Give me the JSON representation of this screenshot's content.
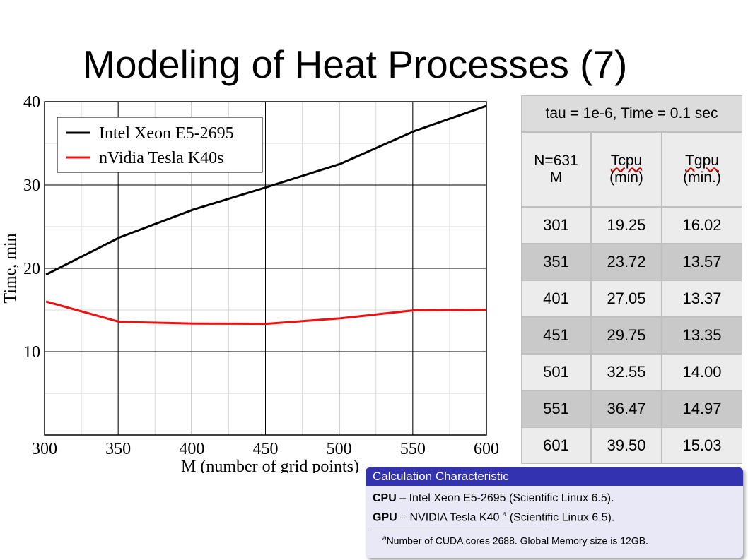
{
  "slide": {
    "title": "Modeling of Heat Processes (7)"
  },
  "chart_data": {
    "type": "line",
    "x": [
      301,
      351,
      401,
      451,
      501,
      551,
      601
    ],
    "series": [
      {
        "name": "Intel Xeon E5-2695",
        "color": "#000000",
        "values": [
          19.25,
          23.72,
          27.05,
          29.75,
          32.55,
          36.47,
          39.5
        ]
      },
      {
        "name": "nVidia Tesla K40s",
        "color": "#ee1111",
        "values": [
          16.02,
          13.57,
          13.37,
          13.35,
          14.0,
          14.97,
          15.03
        ]
      }
    ],
    "xlim": [
      300,
      600
    ],
    "ylim": [
      0,
      40
    ],
    "xticks": [
      "300",
      "350",
      "400",
      "450",
      "500",
      "550",
      "600"
    ],
    "yticks": [
      "10",
      "20",
      "30",
      "40"
    ],
    "xlabel": "M (number of grid points)",
    "ylabel": "Time, min",
    "grid": true,
    "legend_position": "top-left"
  },
  "table": {
    "caption": "tau = 1e-6, Time = 0.1 sec",
    "headers": {
      "n_line1": "N=631",
      "n_line2": "M",
      "tcpu_line1": "Tcpu",
      "tcpu_line2": "(min)",
      "tgpu_line1": "Tgpu",
      "tgpu_line2": "(min.)"
    },
    "rows": [
      [
        "301",
        "19.25",
        "16.02"
      ],
      [
        "351",
        "23.72",
        "13.57"
      ],
      [
        "401",
        "27.05",
        "13.37"
      ],
      [
        "451",
        "29.75",
        "13.35"
      ],
      [
        "501",
        "32.55",
        "14.00"
      ],
      [
        "551",
        "36.47",
        "14.97"
      ],
      [
        "601",
        "39.50",
        "15.03"
      ]
    ]
  },
  "block": {
    "title": "Calculation Characteristic",
    "cpu_label": "CPU",
    "cpu_text": " – Intel Xeon E5-2695 (Scientific Linux 6.5).",
    "gpu_label": "GPU",
    "gpu_text": " – NVIDIA Tesla K40 ",
    "gpu_mark": "a",
    "gpu_text2": " (Scientific Linux 6.5).",
    "footnote_mark": "a",
    "footnote": "Number of CUDA cores 2688. Global Memory size is 12GB.",
    "accent_color": "#3333b2"
  }
}
